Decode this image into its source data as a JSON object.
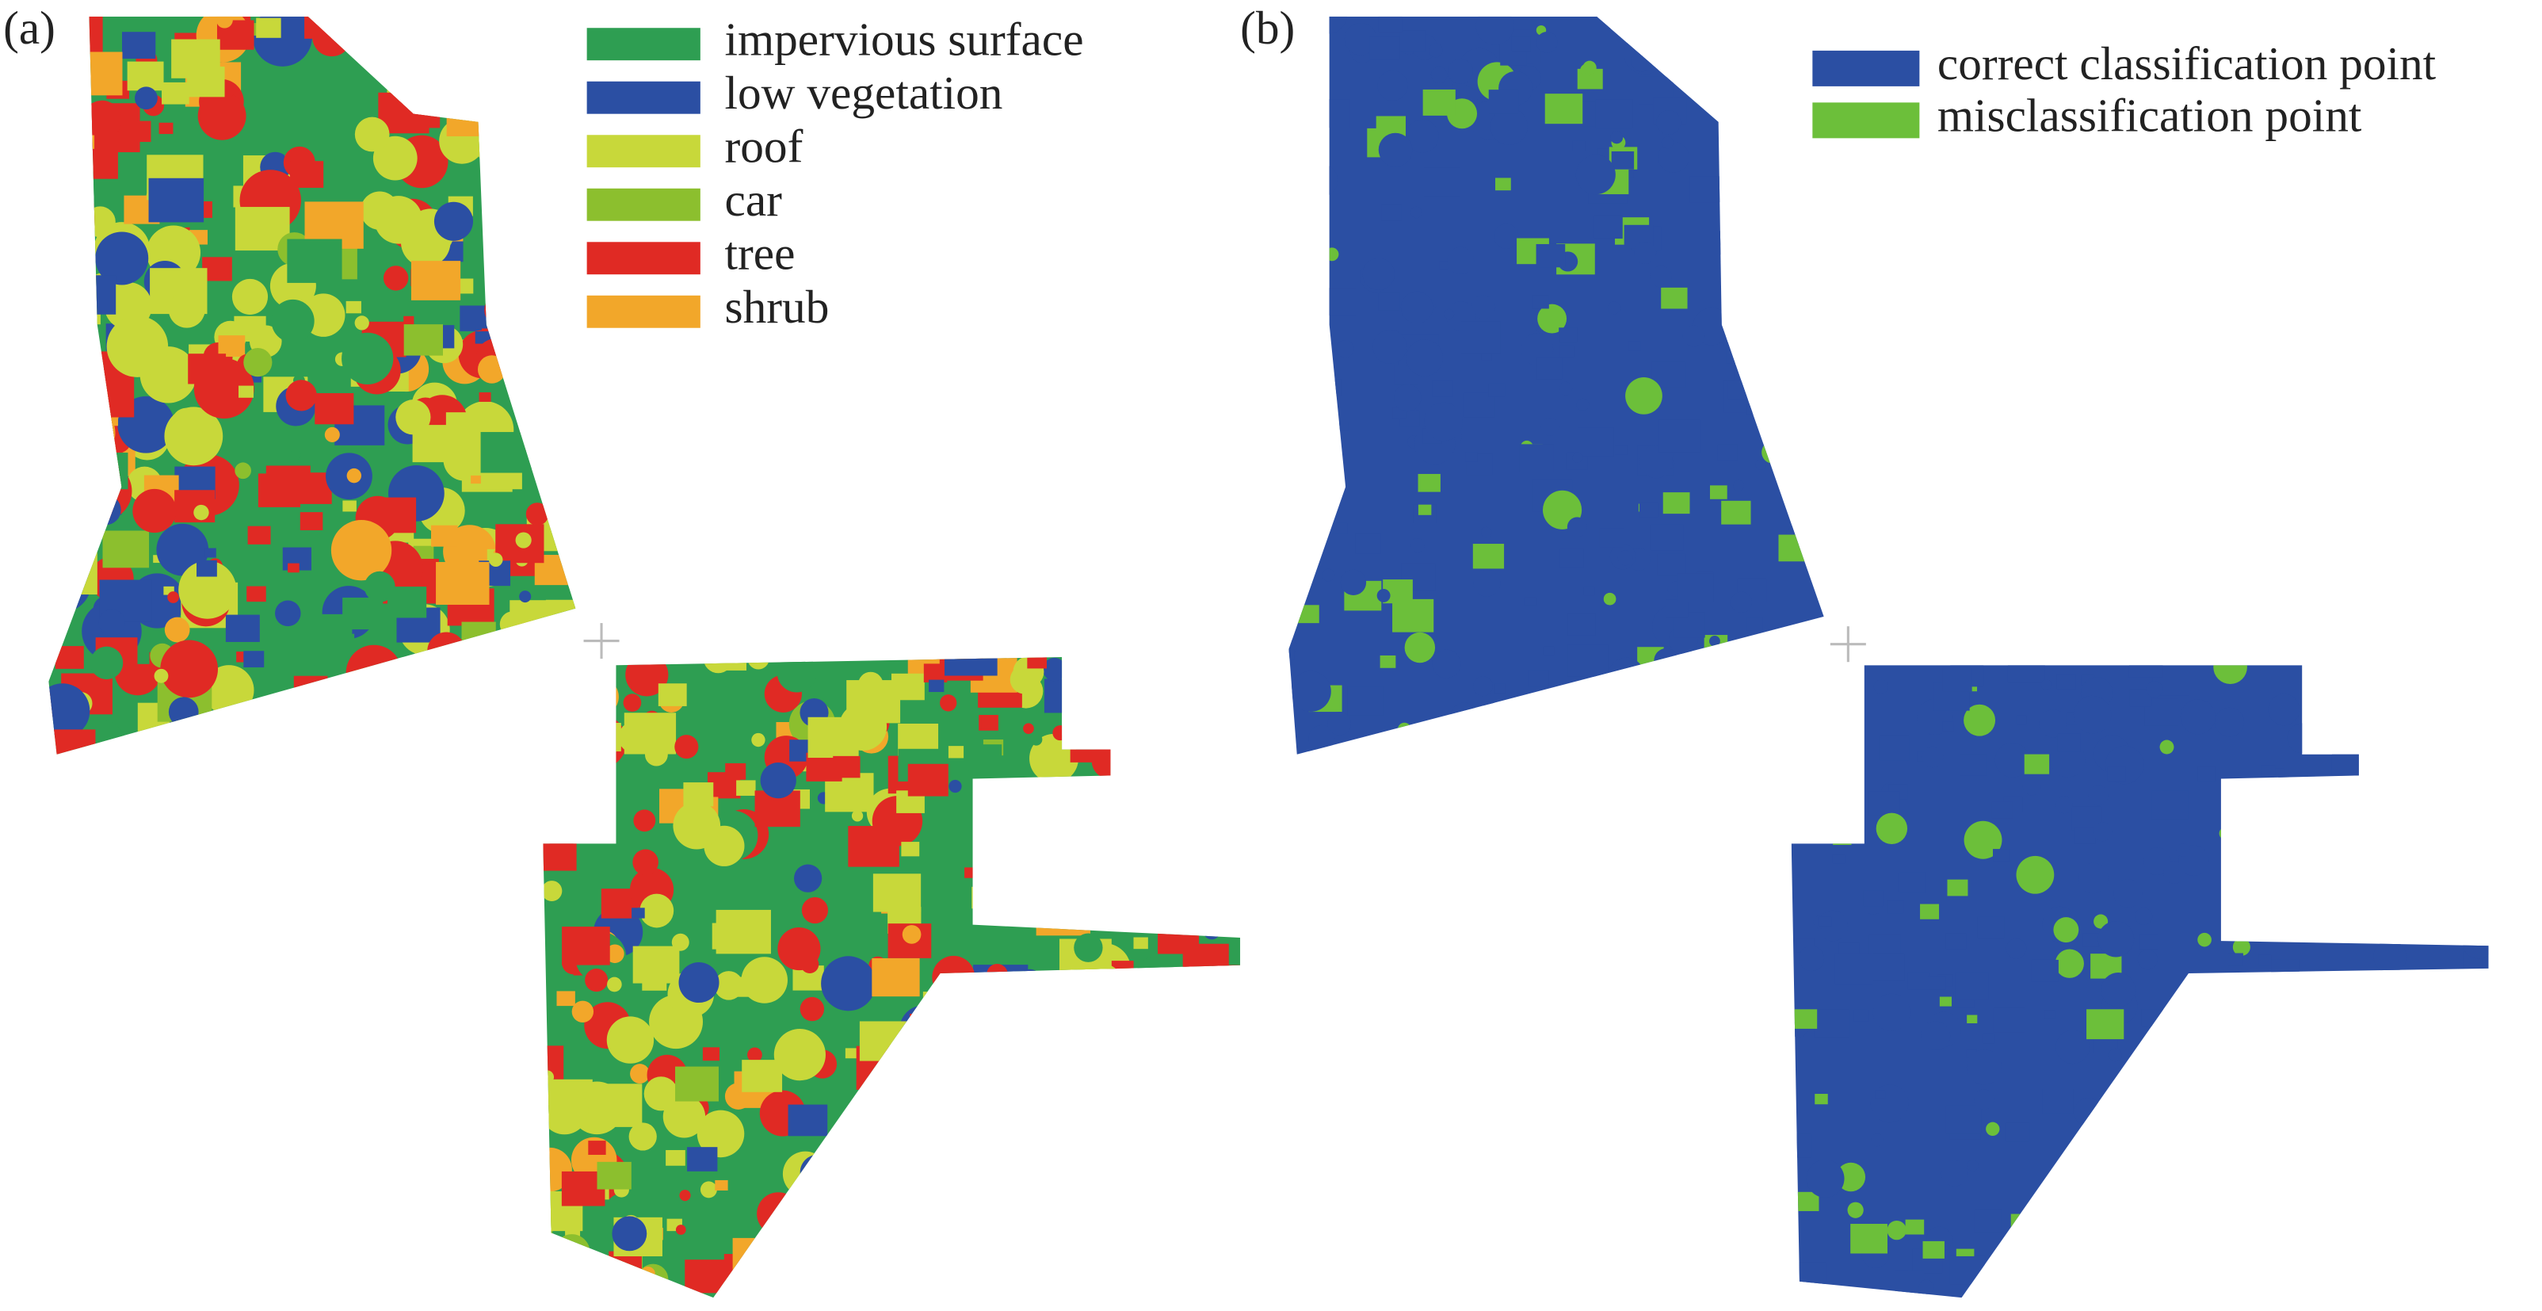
{
  "panels": [
    {
      "label": "(a)",
      "legend": [
        {
          "label": "impervious surface",
          "color": "#2e9e52"
        },
        {
          "label": "low vegetation",
          "color": "#2b4fa3"
        },
        {
          "label": "roof",
          "color": "#c8d83a"
        },
        {
          "label": "car",
          "color": "#8cbf2e"
        },
        {
          "label": "tree",
          "color": "#e02a24"
        },
        {
          "label": "shrub",
          "color": "#f2a72a"
        }
      ]
    },
    {
      "label": "(b)",
      "legend": [
        {
          "label": "correct classification point",
          "color": "#2b4fa3"
        },
        {
          "label": "misclassification point",
          "color": "#6cbf3a"
        }
      ]
    }
  ]
}
